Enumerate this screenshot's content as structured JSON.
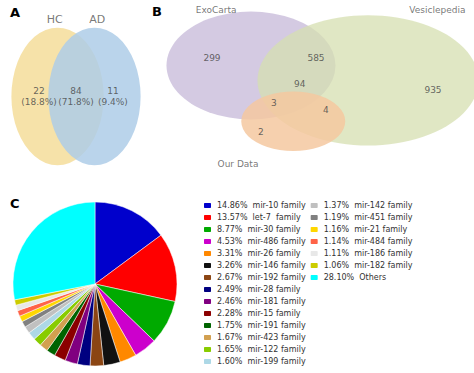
{
  "chart_data": [
    {
      "type": "venn",
      "title": "A",
      "series": [
        {
          "name": "HC",
          "color": "#F5DFA0"
        },
        {
          "name": "AD",
          "color": "#AECDE8"
        }
      ],
      "values": [
        22,
        84,
        11
      ],
      "value_labels": [
        "22\n(18.8%)",
        "84\n(71.8%)",
        "11\n(9.4%)"
      ],
      "data_labels": true
    },
    {
      "type": "venn",
      "title": "B",
      "series": [
        {
          "name": "ExoCarta",
          "color": "#C5B8D8"
        },
        {
          "name": "Vesiclepedia",
          "color": "#D5DFB0"
        },
        {
          "name": "Our Data",
          "color": "#F5C8A0"
        }
      ],
      "values": [
        299,
        935,
        2,
        585,
        3,
        4,
        94
      ],
      "data_labels": true
    },
    {
      "type": "pie",
      "title": "C",
      "categories": [
        "14.86%  mir-10 family",
        "13.57%  let-7  family",
        "8.77%  mir-30 family",
        "4.53%  mir-486 family",
        "3.31%  mir-26 family",
        "3.26%  mir-146 family",
        "2.67%  mir-192 family",
        "2.49%  mir-28 family",
        "2.46%  mir-181 family",
        "2.28%  mir-15 family",
        "1.75%  mir-191 family",
        "1.67%  mir-423 family",
        "1.65%  mir-122 family",
        "1.60%  mir-199 family",
        "1.37%  mir-142 family",
        "1.19%  mir-451 family",
        "1.16%  mir-21 family",
        "1.14%  mir-484 family",
        "1.11%  mir-186 family",
        "1.06%  mir-182 family",
        "28.10%  Others"
      ],
      "values": [
        14.86,
        13.57,
        8.77,
        4.53,
        3.31,
        3.26,
        2.67,
        2.49,
        2.46,
        2.28,
        1.75,
        1.67,
        1.65,
        1.6,
        1.37,
        1.19,
        1.16,
        1.14,
        1.11,
        1.06,
        28.1
      ],
      "colors": [
        "#0000CC",
        "#FF0000",
        "#00AA00",
        "#CC00CC",
        "#FF8800",
        "#111111",
        "#8B4513",
        "#000080",
        "#800080",
        "#8B0000",
        "#006400",
        "#D2A050",
        "#88CC00",
        "#ADD8E6",
        "#C0C0C0",
        "#808080",
        "#FFD700",
        "#FF6347",
        "#E8E8E8",
        "#CCCC00",
        "#00FFFF"
      ],
      "legend": "right"
    }
  ]
}
